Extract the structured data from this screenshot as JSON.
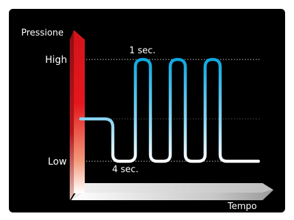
{
  "y_axis": {
    "label": "Pressione"
  },
  "x_axis": {
    "label": "Tempo"
  },
  "levels": {
    "high": "High",
    "low": "Low"
  },
  "annotations": {
    "pulse_duration": "1 sec.",
    "interval_duration": "4 sec."
  },
  "colors": {
    "background": "#000000",
    "y_axis_top": "#e3141b",
    "y_axis_bottom": "#ffffff",
    "wave_high": "#0aa6e0",
    "wave_low": "#ffffff",
    "guide_line": "#cfcfcf"
  }
}
